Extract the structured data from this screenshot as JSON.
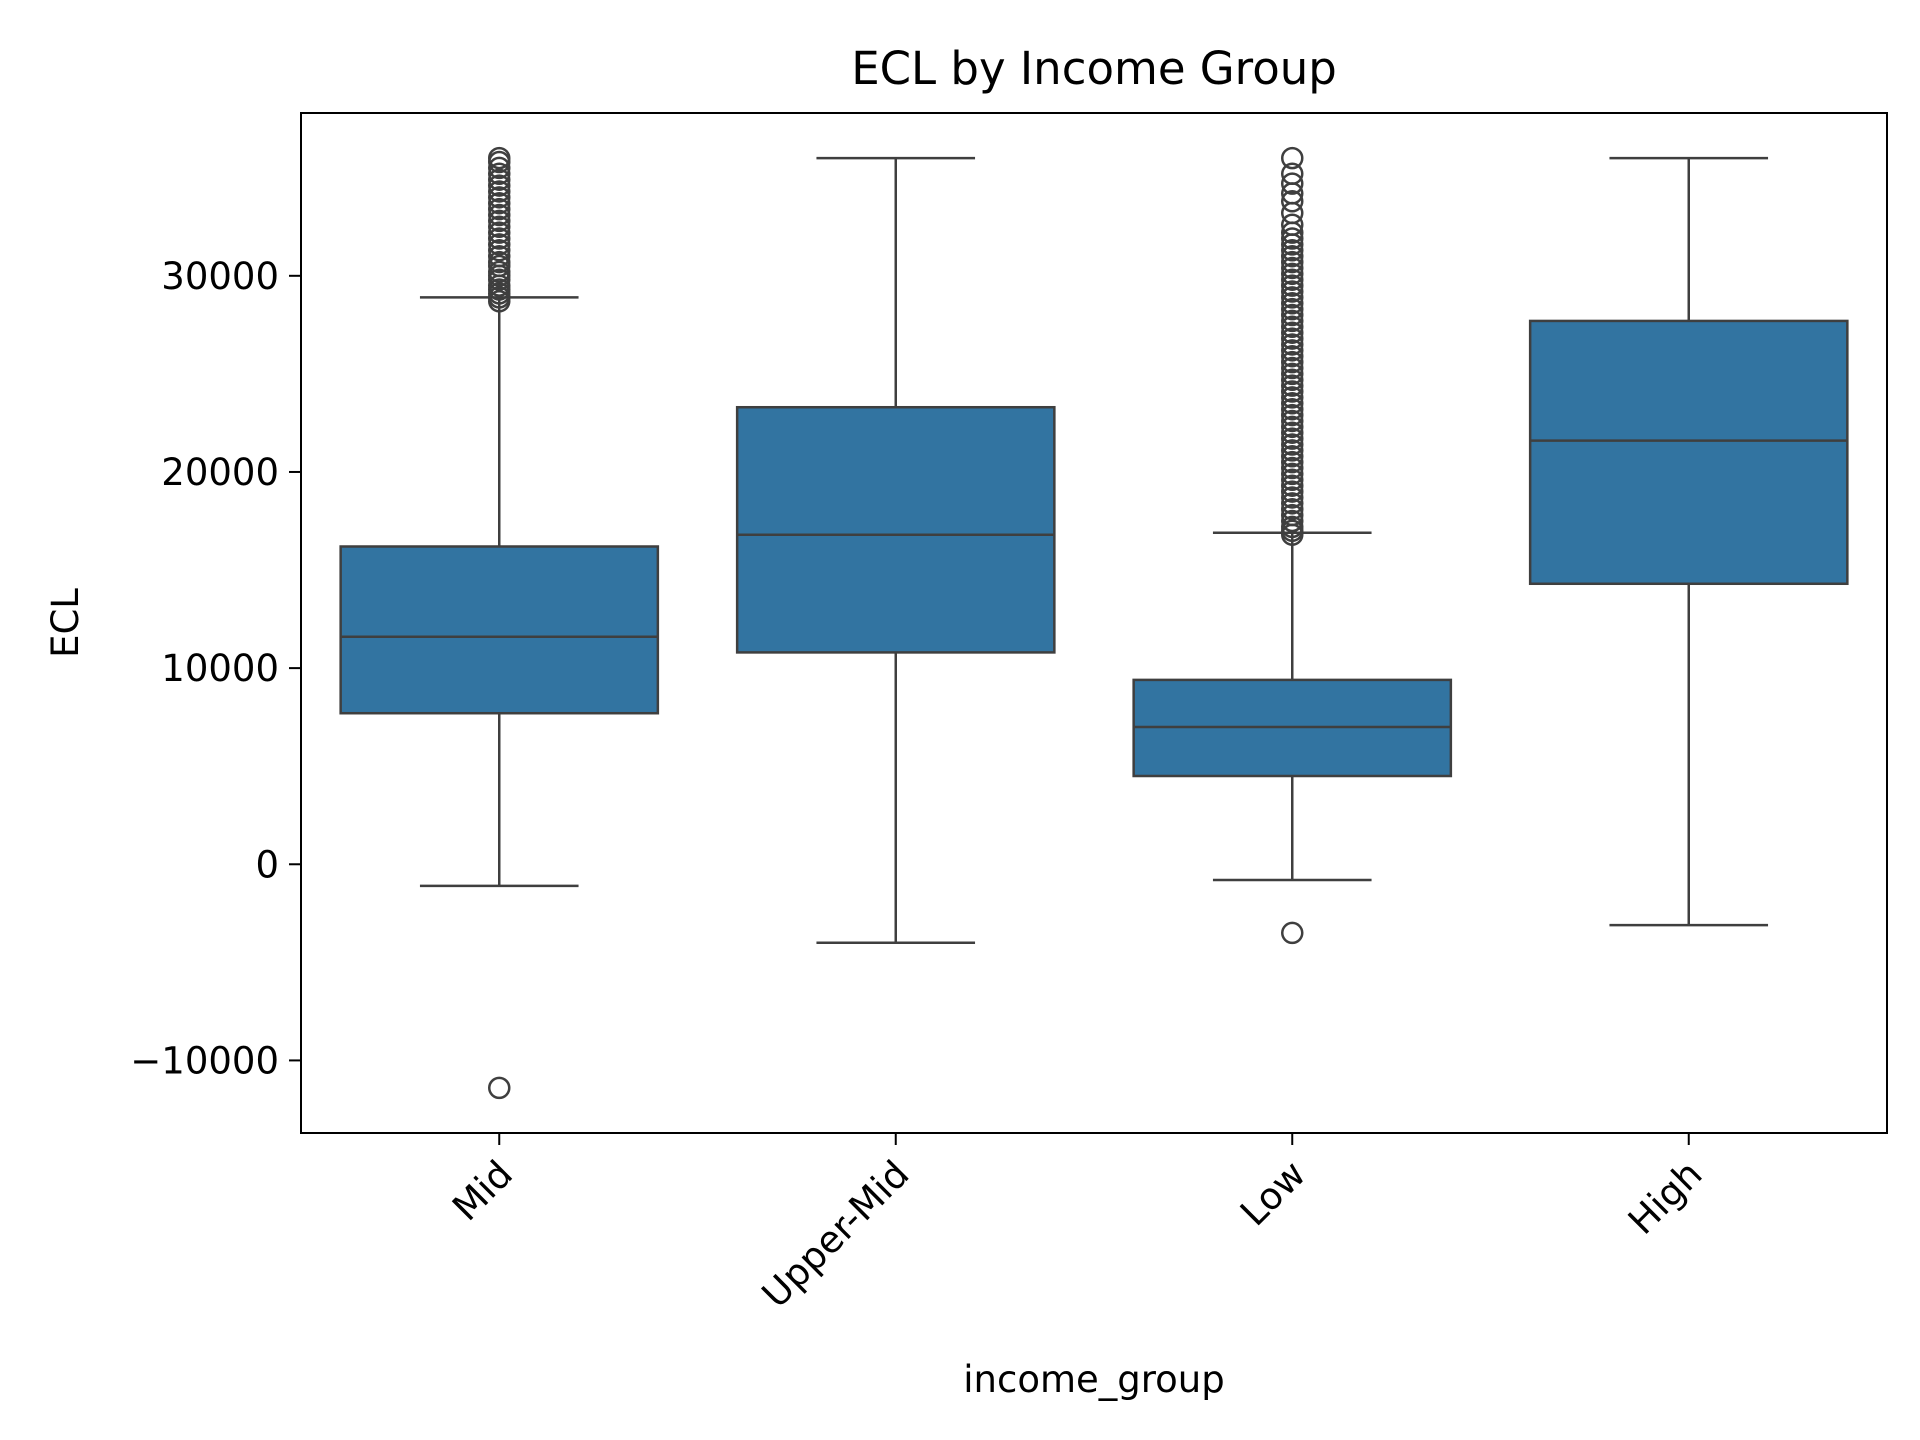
{
  "chart_data": {
    "type": "box",
    "title": "ECL by Income Group",
    "xlabel": "income_group",
    "ylabel": "ECL",
    "ylim": [
      -13700,
      38300
    ],
    "yticks": [
      -10000,
      0,
      10000,
      20000,
      30000
    ],
    "ytick_labels": [
      "−10000",
      "0",
      "10000",
      "20000",
      "30000"
    ],
    "grid": false,
    "legend": "none",
    "box_color": "#3274a1",
    "line_color": "#3f3f3f",
    "categories": [
      "Mid",
      "Upper-Mid",
      "Low",
      "High"
    ],
    "boxes": [
      {
        "category": "Mid",
        "whisker_low": -1100,
        "q1": 7700,
        "median": 11600,
        "q3": 16200,
        "whisker_high": 28900,
        "outliers": [
          -11400,
          28700,
          28900,
          29100,
          29300,
          29500,
          29800,
          30000,
          30200,
          30500,
          30700,
          31000,
          31300,
          31600,
          31900,
          32200,
          32500,
          32800,
          33100,
          33400,
          33700,
          34000,
          34300,
          34600,
          34900,
          35200,
          35500,
          35800,
          36000
        ]
      },
      {
        "category": "Upper-Mid",
        "whisker_low": -4000,
        "q1": 10800,
        "median": 16800,
        "q3": 23300,
        "whisker_high": 36000,
        "outliers": []
      },
      {
        "category": "Low",
        "whisker_low": -800,
        "q1": 4500,
        "median": 7000,
        "q3": 9400,
        "whisker_high": 16900,
        "outliers": [
          -3500,
          16800,
          17000,
          17200,
          17500,
          17800,
          18100,
          18400,
          18700,
          19000,
          19300,
          19600,
          19900,
          20200,
          20500,
          20800,
          21100,
          21400,
          21700,
          22000,
          22300,
          22600,
          22900,
          23200,
          23500,
          23800,
          24100,
          24400,
          24700,
          25000,
          25300,
          25600,
          25900,
          26200,
          26500,
          26800,
          27100,
          27400,
          27700,
          28000,
          28300,
          28600,
          28900,
          29200,
          29500,
          29800,
          30100,
          30400,
          30700,
          31000,
          31300,
          31600,
          31900,
          32200,
          32600,
          33200,
          33800,
          34200,
          34700,
          35200,
          36000
        ]
      },
      {
        "category": "High",
        "whisker_low": -3100,
        "q1": 14300,
        "median": 21600,
        "q3": 27700,
        "whisker_high": 36000,
        "outliers": []
      }
    ]
  }
}
